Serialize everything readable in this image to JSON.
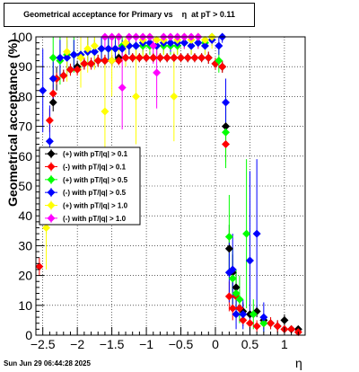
{
  "chart_data": {
    "type": "scatter",
    "title": "Geometrical acceptance for Primary vs    η  at pT > 0.11",
    "xlabel": "η",
    "ylabel": "Geometrical acceptance (%)",
    "xlim": [
      -2.6,
      1.3
    ],
    "ylim": [
      0,
      100
    ],
    "x_ticks": [
      {
        "v": -2.5,
        "label": "−2.5"
      },
      {
        "v": -2,
        "label": "−2"
      },
      {
        "v": -1.5,
        "label": "−1.5"
      },
      {
        "v": -1,
        "label": "−1"
      },
      {
        "v": -0.5,
        "label": "−0.5"
      },
      {
        "v": 0,
        "label": "0"
      },
      {
        "v": 0.5,
        "label": "0.5"
      },
      {
        "v": 1,
        "label": "1"
      }
    ],
    "y_ticks": [
      {
        "v": 0,
        "label": "0"
      },
      {
        "v": 10,
        "label": "10"
      },
      {
        "v": 20,
        "label": "20"
      },
      {
        "v": 30,
        "label": "30"
      },
      {
        "v": 40,
        "label": "40"
      },
      {
        "v": 50,
        "label": "50"
      },
      {
        "v": 60,
        "label": "60"
      },
      {
        "v": 70,
        "label": "70"
      },
      {
        "v": 80,
        "label": "80"
      },
      {
        "v": 90,
        "label": "90"
      },
      {
        "v": 100,
        "label": "100"
      }
    ],
    "grid": true,
    "legend_position": "left-middle",
    "series": [
      {
        "name": "(+) with pT/|q| > 0.1",
        "color": "#000000",
        "points": [
          [
            -2.35,
            78,
            3
          ],
          [
            -2.3,
            86,
            4
          ],
          [
            -2.2,
            87,
            2
          ],
          [
            -2.1,
            89,
            2
          ],
          [
            -2.0,
            90,
            2
          ],
          [
            -1.9,
            91,
            2
          ],
          [
            -1.8,
            91,
            2
          ],
          [
            -1.7,
            92,
            2
          ],
          [
            -1.6,
            92,
            2
          ],
          [
            -1.5,
            92,
            2
          ],
          [
            -1.4,
            93,
            1.5
          ],
          [
            -1.3,
            93,
            1.5
          ],
          [
            -1.2,
            93,
            1.5
          ],
          [
            -1.1,
            93,
            1.5
          ],
          [
            -1.0,
            93,
            1.5
          ],
          [
            -0.9,
            93,
            1.5
          ],
          [
            -0.8,
            93,
            1.5
          ],
          [
            -0.7,
            93,
            1.5
          ],
          [
            -0.6,
            93,
            1.5
          ],
          [
            -0.5,
            93,
            1.5
          ],
          [
            -0.4,
            93,
            1.5
          ],
          [
            -0.3,
            93,
            1.5
          ],
          [
            -0.2,
            93,
            1.5
          ],
          [
            -0.1,
            93,
            2
          ],
          [
            0.0,
            91,
            2
          ],
          [
            0.1,
            90,
            2
          ],
          [
            0.15,
            70,
            6
          ],
          [
            0.2,
            29,
            8
          ],
          [
            0.25,
            21,
            6
          ],
          [
            0.3,
            16,
            5
          ],
          [
            0.35,
            9,
            4
          ],
          [
            0.4,
            8,
            3
          ],
          [
            0.5,
            7,
            2
          ],
          [
            0.6,
            8,
            2
          ],
          [
            0.7,
            5,
            2
          ],
          [
            0.8,
            4,
            2
          ],
          [
            0.9,
            3,
            2
          ],
          [
            1.0,
            5,
            2
          ],
          [
            1.1,
            2,
            1
          ],
          [
            1.2,
            2,
            1
          ]
        ]
      },
      {
        "name": "(-) with pT/|q| > 0.1",
        "color": "#ff0000",
        "points": [
          [
            -2.55,
            23,
            3
          ],
          [
            -2.4,
            72,
            4
          ],
          [
            -2.35,
            81,
            3
          ],
          [
            -2.3,
            86,
            2
          ],
          [
            -2.2,
            87,
            2
          ],
          [
            -2.1,
            89,
            2
          ],
          [
            -2.0,
            89,
            2
          ],
          [
            -1.9,
            91,
            2
          ],
          [
            -1.8,
            91,
            2
          ],
          [
            -1.7,
            92,
            2
          ],
          [
            -1.6,
            92,
            2
          ],
          [
            -1.5,
            92,
            2
          ],
          [
            -1.4,
            92,
            1.5
          ],
          [
            -1.3,
            93,
            1.5
          ],
          [
            -1.2,
            93,
            1.5
          ],
          [
            -1.1,
            93,
            1.5
          ],
          [
            -1.0,
            93,
            1.5
          ],
          [
            -0.9,
            93,
            1.5
          ],
          [
            -0.8,
            93,
            1.5
          ],
          [
            -0.7,
            93,
            1.5
          ],
          [
            -0.6,
            93,
            1.5
          ],
          [
            -0.5,
            93,
            1.5
          ],
          [
            -0.4,
            93,
            1.5
          ],
          [
            -0.3,
            93,
            1.5
          ],
          [
            -0.2,
            93,
            1.5
          ],
          [
            -0.1,
            93,
            2
          ],
          [
            0.0,
            91,
            2
          ],
          [
            0.1,
            90,
            2
          ],
          [
            0.15,
            64,
            6
          ],
          [
            0.2,
            13,
            5
          ],
          [
            0.25,
            9,
            4
          ],
          [
            0.3,
            13,
            4
          ],
          [
            0.35,
            9,
            3
          ],
          [
            0.4,
            5,
            2
          ],
          [
            0.5,
            4,
            2
          ],
          [
            0.6,
            3,
            2
          ],
          [
            0.7,
            4,
            2
          ],
          [
            0.8,
            4,
            2
          ],
          [
            0.9,
            3,
            2
          ],
          [
            1.0,
            2,
            1
          ],
          [
            1.1,
            2,
            1
          ],
          [
            1.2,
            1,
            1
          ]
        ]
      },
      {
        "name": "(+) with pT/|q| > 0.5",
        "color": "#00ff00",
        "points": [
          [
            -2.45,
            46,
            12
          ],
          [
            -2.35,
            93,
            10
          ],
          [
            -2.25,
            92,
            8
          ],
          [
            -2.15,
            94,
            6
          ],
          [
            -2.05,
            94,
            6
          ],
          [
            -1.95,
            94,
            6
          ],
          [
            -1.85,
            95,
            5
          ],
          [
            -1.75,
            95,
            5
          ],
          [
            -1.65,
            96,
            4
          ],
          [
            -1.55,
            96,
            4
          ],
          [
            -1.45,
            96,
            4
          ],
          [
            -1.35,
            97,
            3
          ],
          [
            -1.25,
            97,
            3
          ],
          [
            -1.15,
            97,
            3
          ],
          [
            -1.05,
            97,
            3
          ],
          [
            -0.95,
            97,
            3
          ],
          [
            -0.85,
            97,
            3
          ],
          [
            -0.75,
            97,
            3
          ],
          [
            -0.65,
            97,
            3
          ],
          [
            -0.55,
            97,
            3
          ],
          [
            -0.45,
            98,
            2
          ],
          [
            -0.35,
            97,
            3
          ],
          [
            -0.25,
            98,
            2
          ],
          [
            -0.15,
            98,
            2
          ],
          [
            -0.05,
            100,
            2
          ],
          [
            0.05,
            92,
            4
          ],
          [
            0.15,
            68,
            12
          ],
          [
            0.2,
            33,
            14
          ],
          [
            0.25,
            19,
            10
          ],
          [
            0.3,
            14,
            8
          ],
          [
            0.35,
            12,
            8
          ],
          [
            0.45,
            34,
            25
          ],
          [
            0.55,
            7,
            5
          ],
          [
            0.7,
            4,
            3
          ]
        ]
      },
      {
        "name": "(-) with pT/|q| > 0.5",
        "color": "#0000ff",
        "points": [
          [
            -2.5,
            82,
            14
          ],
          [
            -2.4,
            65,
            12
          ],
          [
            -2.35,
            86,
            8
          ],
          [
            -2.25,
            93,
            6
          ],
          [
            -2.15,
            93,
            6
          ],
          [
            -2.05,
            94,
            5
          ],
          [
            -1.95,
            94,
            5
          ],
          [
            -1.85,
            95,
            5
          ],
          [
            -1.75,
            95,
            4
          ],
          [
            -1.65,
            96,
            4
          ],
          [
            -1.55,
            96,
            4
          ],
          [
            -1.45,
            96,
            3
          ],
          [
            -1.35,
            96,
            3
          ],
          [
            -1.25,
            97,
            3
          ],
          [
            -1.15,
            97,
            3
          ],
          [
            -1.05,
            98,
            3
          ],
          [
            -0.95,
            98,
            3
          ],
          [
            -0.85,
            97,
            3
          ],
          [
            -0.75,
            98,
            3
          ],
          [
            -0.65,
            98,
            3
          ],
          [
            -0.55,
            98,
            2
          ],
          [
            -0.45,
            98,
            2
          ],
          [
            -0.35,
            97,
            3
          ],
          [
            -0.25,
            98,
            2
          ],
          [
            -0.15,
            97,
            3
          ],
          [
            -0.05,
            99,
            2
          ],
          [
            0.05,
            97,
            3
          ],
          [
            0.1,
            100,
            2
          ],
          [
            0.15,
            78,
            8
          ],
          [
            0.2,
            21,
            10
          ],
          [
            0.25,
            22,
            12
          ],
          [
            0.3,
            7,
            5
          ],
          [
            0.4,
            7,
            5
          ],
          [
            0.5,
            25,
            30
          ],
          [
            0.6,
            34,
            25
          ],
          [
            0.7,
            6,
            5
          ]
        ]
      },
      {
        "name": "(+) with pT/|q| > 1.0",
        "color": "#ffff00",
        "points": [
          [
            -2.45,
            36,
            14
          ],
          [
            -2.15,
            95,
            10
          ],
          [
            -1.95,
            93,
            10
          ],
          [
            -1.85,
            96,
            8
          ],
          [
            -1.75,
            97,
            8
          ],
          [
            -1.6,
            75,
            18
          ],
          [
            -1.5,
            92,
            12
          ],
          [
            -1.4,
            100,
            8
          ],
          [
            -1.3,
            98,
            8
          ],
          [
            -1.15,
            80,
            16
          ],
          [
            -1.05,
            99,
            6
          ],
          [
            -0.95,
            100,
            5
          ],
          [
            -0.85,
            99,
            6
          ],
          [
            -0.75,
            99,
            5
          ],
          [
            -0.6,
            80,
            15
          ],
          [
            -0.55,
            99,
            5
          ],
          [
            -0.45,
            100,
            4
          ],
          [
            -0.35,
            99,
            5
          ],
          [
            -0.25,
            100,
            4
          ],
          [
            -0.15,
            99,
            5
          ],
          [
            -0.05,
            100,
            4
          ]
        ]
      },
      {
        "name": "(-) with pT/|q| > 1.0",
        "color": "#ff00ff",
        "points": [
          [
            -1.6,
            100,
            4
          ],
          [
            -1.5,
            100,
            4
          ],
          [
            -1.4,
            100,
            4
          ],
          [
            -1.35,
            83,
            14
          ],
          [
            -1.25,
            100,
            4
          ],
          [
            -1.15,
            100,
            4
          ],
          [
            -1.05,
            100,
            4
          ],
          [
            -0.95,
            100,
            4
          ],
          [
            -0.9,
            97,
            6
          ],
          [
            -0.85,
            88,
            12
          ],
          [
            -0.75,
            100,
            4
          ],
          [
            -0.65,
            100,
            4
          ],
          [
            -0.55,
            100,
            4
          ],
          [
            -0.45,
            100,
            4
          ],
          [
            -0.35,
            100,
            4
          ],
          [
            -0.25,
            100,
            4
          ]
        ]
      }
    ]
  },
  "footer": {
    "date": "Sun Jun 29 06:44:28 2025"
  }
}
